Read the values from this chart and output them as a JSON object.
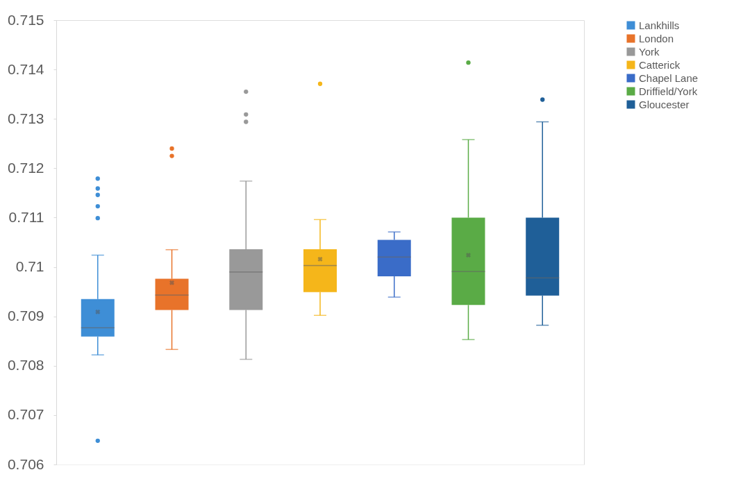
{
  "chart_data": {
    "type": "box",
    "categories": [
      null
    ],
    "series": [
      {
        "name": "Lankhills",
        "color": "#3e8ed6",
        "boxes": [
          {
            "low": 0.70822,
            "q1": 0.70859,
            "median": 0.70877,
            "q3": 0.70935,
            "high": 0.71024,
            "mean": 0.70909,
            "outliers": [
              0.71179,
              0.71159,
              0.71146,
              0.71123,
              0.71099,
              0.70648
            ]
          }
        ]
      },
      {
        "name": "London",
        "color": "#e8732a",
        "boxes": [
          {
            "low": 0.70833,
            "q1": 0.70913,
            "median": 0.70943,
            "q3": 0.70976,
            "high": 0.71035,
            "mean": 0.70968,
            "outliers": [
              0.7124,
              0.71225
            ]
          }
        ]
      },
      {
        "name": "York",
        "color": "#999999",
        "boxes": [
          {
            "low": 0.70813,
            "q1": 0.70913,
            "median": 0.7099,
            "q3": 0.71036,
            "high": 0.71174,
            "outliers": [
              0.71355,
              0.71309,
              0.71294
            ]
          }
        ]
      },
      {
        "name": "Catterick",
        "color": "#f5b61a",
        "boxes": [
          {
            "low": 0.70902,
            "q1": 0.70949,
            "median": 0.71003,
            "q3": 0.71036,
            "high": 0.71096,
            "mean": 0.71016,
            "outliers": [
              0.71371
            ]
          }
        ]
      },
      {
        "name": "Chapel Lane",
        "color": "#3a6cc8",
        "boxes": [
          {
            "low": 0.70939,
            "q1": 0.70981,
            "median": 0.7102,
            "q3": 0.71055,
            "high": 0.71071
          }
        ]
      },
      {
        "name": "Driffield/York",
        "color": "#5aab46",
        "boxes": [
          {
            "low": 0.70853,
            "q1": 0.70923,
            "median": 0.70991,
            "q3": 0.711,
            "high": 0.71258,
            "mean": 0.71024,
            "outliers": [
              0.71414
            ]
          }
        ]
      },
      {
        "name": "Gloucester",
        "color": "#1f5f98",
        "boxes": [
          {
            "low": 0.70882,
            "q1": 0.70942,
            "median": 0.70978,
            "q3": 0.711,
            "high": 0.71294,
            "outliers": [
              0.71339
            ]
          }
        ]
      }
    ],
    "ylim": [
      0.706,
      0.715
    ],
    "yticks": [
      0.706,
      0.707,
      0.708,
      0.709,
      0.71,
      0.711,
      0.712,
      0.713,
      0.714,
      0.715
    ],
    "tick_labels": "y",
    "legend": "right",
    "grid": false
  }
}
